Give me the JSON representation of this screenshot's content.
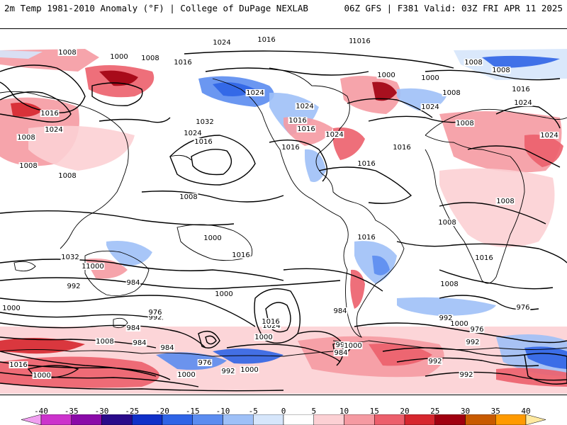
{
  "header": {
    "left_title": "2m Temp 1981-2010 Anomaly (°F) | College of DuPage NEXLAB",
    "right_title": "06Z GFS | F381 Valid: 03Z FRI APR 11 2025"
  },
  "map": {
    "field": "2m temperature anomaly",
    "contour_field": "mean sea level pressure (hPa)",
    "projection": "global cylindrical",
    "isobar_labels": [
      {
        "text": "1016"
      },
      {
        "text": "1024"
      },
      {
        "text": "1016"
      },
      {
        "text": "1008"
      },
      {
        "text": "1000"
      },
      {
        "text": "1008"
      },
      {
        "text": "1016"
      },
      {
        "text": "1008"
      },
      {
        "text": "1024"
      },
      {
        "text": "1016"
      },
      {
        "text": "1008"
      },
      {
        "text": "1008"
      },
      {
        "text": "1032"
      },
      {
        "text": "1024"
      },
      {
        "text": "1016"
      },
      {
        "text": "1024"
      },
      {
        "text": "1016"
      },
      {
        "text": "1024"
      },
      {
        "text": "1016"
      },
      {
        "text": "1016"
      },
      {
        "text": "1024"
      },
      {
        "text": "1000"
      },
      {
        "text": "1008"
      },
      {
        "text": "1016"
      },
      {
        "text": "1016"
      },
      {
        "text": "1000"
      },
      {
        "text": "1008"
      },
      {
        "text": "1008"
      },
      {
        "text": "1024"
      },
      {
        "text": "1024"
      },
      {
        "text": "1016"
      },
      {
        "text": "1008"
      },
      {
        "text": "1008"
      },
      {
        "text": "1016"
      },
      {
        "text": "1024"
      },
      {
        "text": "1008"
      },
      {
        "text": "1016"
      },
      {
        "text": "1008"
      },
      {
        "text": "1016"
      },
      {
        "text": "1016"
      },
      {
        "text": "1008"
      },
      {
        "text": "1008"
      },
      {
        "text": "1000"
      },
      {
        "text": "1016"
      },
      {
        "text": "1000"
      },
      {
        "text": "992"
      },
      {
        "text": "1024"
      },
      {
        "text": "1016"
      },
      {
        "text": "1000"
      },
      {
        "text": "984"
      },
      {
        "text": "1008"
      },
      {
        "text": "1000"
      },
      {
        "text": "992"
      },
      {
        "text": "984"
      },
      {
        "text": "976"
      },
      {
        "text": "984"
      },
      {
        "text": "992"
      },
      {
        "text": "1032"
      },
      {
        "text": "1000"
      },
      {
        "text": "1008"
      },
      {
        "text": "984"
      },
      {
        "text": "1016"
      },
      {
        "text": "1000"
      },
      {
        "text": "976"
      },
      {
        "text": "992"
      },
      {
        "text": "976"
      },
      {
        "text": "992"
      },
      {
        "text": "992"
      },
      {
        "text": "984"
      },
      {
        "text": "976"
      },
      {
        "text": "984"
      },
      {
        "text": "1000"
      },
      {
        "text": "992"
      },
      {
        "text": "1000"
      },
      {
        "text": "1000"
      },
      {
        "text": "1000"
      },
      {
        "text": "992"
      }
    ]
  },
  "colorbar": {
    "ticks": [
      "-40",
      "-35",
      "-30",
      "-25",
      "-20",
      "-15",
      "-10",
      "-5",
      "0",
      "5",
      "10",
      "15",
      "20",
      "25",
      "30",
      "35",
      "40"
    ],
    "colors": [
      "#f0a0f0",
      "#cc33cc",
      "#8a0aa8",
      "#2a0a8a",
      "#1030c8",
      "#2f64e6",
      "#5b8cf0",
      "#9ec0f7",
      "#d6e6fb",
      "#ffffff",
      "#fcd0d4",
      "#f59aa2",
      "#ec5f6c",
      "#d6262e",
      "#a00010",
      "#c85a00",
      "#ff9a00",
      "#ffd24a",
      "#ffe9a0"
    ]
  }
}
